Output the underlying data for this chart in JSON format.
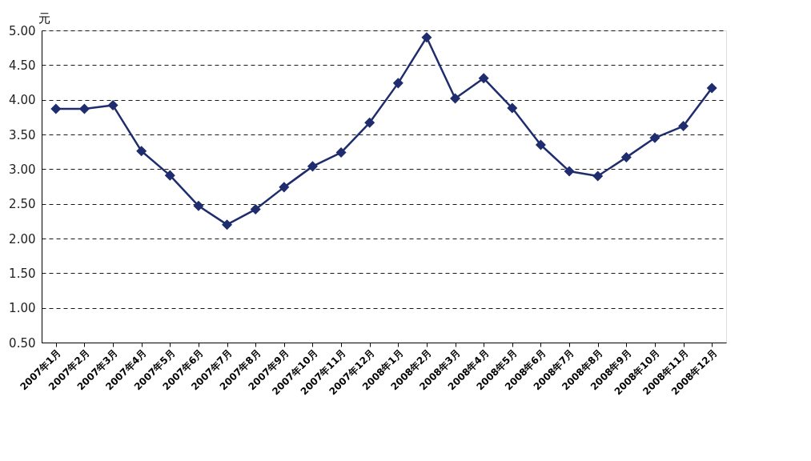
{
  "chart_data": {
    "type": "line",
    "ylabel": "元",
    "categories": [
      "2007年1月",
      "2007年2月",
      "2007年3月",
      "2007年4月",
      "2007年5月",
      "2007年6月",
      "2007年7月",
      "2007年8月",
      "2007年9月",
      "2007年10月",
      "2007年11月",
      "2007年12月",
      "2008年1月",
      "2008年2月",
      "2008年3月",
      "2008年4月",
      "2008年5月",
      "2008年6月",
      "2008年7月",
      "2008年8月",
      "2008年9月",
      "2008年10月",
      "2008年11月",
      "2008年12月"
    ],
    "series": [
      {
        "color": "#1f2d6e",
        "values": [
          3.87,
          3.87,
          3.92,
          3.26,
          2.91,
          2.47,
          2.2,
          2.42,
          2.74,
          3.04,
          3.24,
          3.67,
          4.24,
          4.9,
          4.02,
          4.31,
          3.88,
          3.35,
          2.97,
          2.9,
          3.17,
          3.45,
          3.62,
          4.17
        ]
      }
    ],
    "ylim": [
      0.5,
      5.0
    ],
    "yticks": [
      {
        "value": 0.5,
        "label": "0.50"
      },
      {
        "value": 1.0,
        "label": "1.00"
      },
      {
        "value": 1.5,
        "label": "1.50"
      },
      {
        "value": 2.0,
        "label": "2.00"
      },
      {
        "value": 2.5,
        "label": "2.50"
      },
      {
        "value": 3.0,
        "label": "3.00"
      },
      {
        "value": 3.5,
        "label": "3.50"
      },
      {
        "value": 4.0,
        "label": "4.00"
      },
      {
        "value": 4.5,
        "label": "4.50"
      },
      {
        "value": 5.0,
        "label": "5.00"
      }
    ],
    "grid": "y",
    "marker": "diamond",
    "line_style": "solid"
  }
}
